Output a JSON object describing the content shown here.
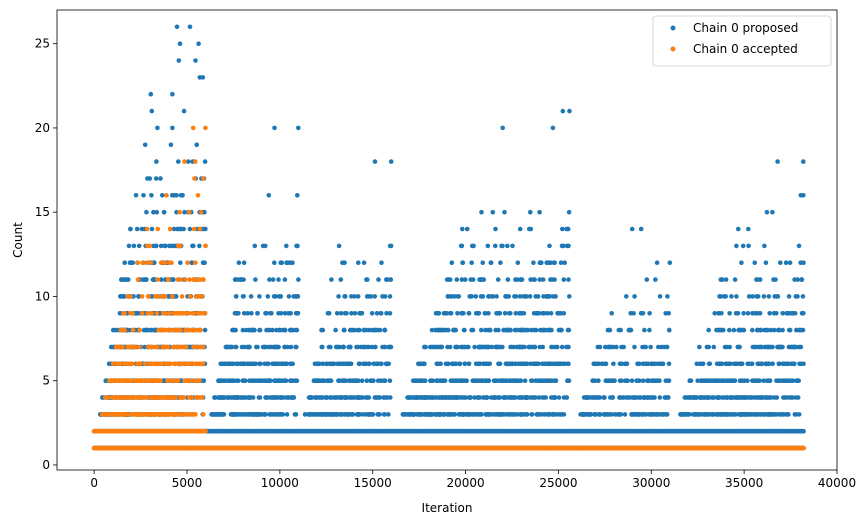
{
  "chart_data": {
    "type": "scatter",
    "xlabel": "Iteration",
    "ylabel": "Count",
    "xlim": [
      -2000,
      40000
    ],
    "ylim": [
      -0.3,
      27
    ],
    "xticks": [
      0,
      5000,
      10000,
      15000,
      20000,
      25000,
      30000,
      35000,
      40000
    ],
    "yticks": [
      0,
      5,
      10,
      15,
      20,
      25
    ],
    "grid": false,
    "legend_position": "top-right",
    "colors": {
      "proposed": "#1f77b4",
      "accepted": "#ff7f0e"
    },
    "series": [
      {
        "name": "Chain 0 proposed",
        "color": "#1f77b4",
        "description": "dense bands per integer count; max count per segment",
        "segments": [
          {
            "x_range": [
              0,
              6000
            ],
            "y_values": [
              1,
              2,
              3,
              4,
              5,
              6,
              7,
              8,
              9,
              10,
              11,
              12,
              13,
              14,
              15,
              16,
              17,
              18,
              19,
              20,
              21,
              22,
              23,
              24,
              25,
              26
            ]
          },
          {
            "x_range": [
              6000,
              11000
            ],
            "y_values": [
              1,
              2,
              3,
              4,
              5,
              6,
              7,
              8,
              9,
              10,
              11,
              12,
              13,
              16,
              20
            ]
          },
          {
            "x_range": [
              11000,
              16000
            ],
            "y_values": [
              1,
              2,
              3,
              4,
              5,
              6,
              7,
              8,
              9,
              10,
              11,
              12,
              13,
              18
            ]
          },
          {
            "x_range": [
              16000,
              25600
            ],
            "y_values": [
              1,
              2,
              3,
              4,
              5,
              6,
              7,
              8,
              9,
              10,
              11,
              12,
              13,
              14,
              15,
              20,
              21
            ]
          },
          {
            "x_range": [
              25600,
              31000
            ],
            "y_values": [
              1,
              2,
              3,
              4,
              5,
              6,
              7,
              8,
              9,
              10,
              11,
              12,
              14
            ]
          },
          {
            "x_range": [
              31000,
              38200
            ],
            "y_values": [
              1,
              2,
              3,
              4,
              5,
              6,
              7,
              8,
              9,
              10,
              11,
              12,
              13,
              14,
              15,
              16,
              18
            ]
          }
        ]
      },
      {
        "name": "Chain 0 accepted",
        "color": "#ff7f0e",
        "segments": [
          {
            "x_range": [
              0,
              6000
            ],
            "y_values": [
              1,
              2,
              3,
              4,
              5,
              6,
              7,
              8,
              9,
              10,
              11,
              12,
              13,
              14,
              15,
              16,
              17,
              18,
              20
            ]
          },
          {
            "x_range": [
              6000,
              38200
            ],
            "y_values": [
              1
            ]
          }
        ]
      }
    ]
  }
}
